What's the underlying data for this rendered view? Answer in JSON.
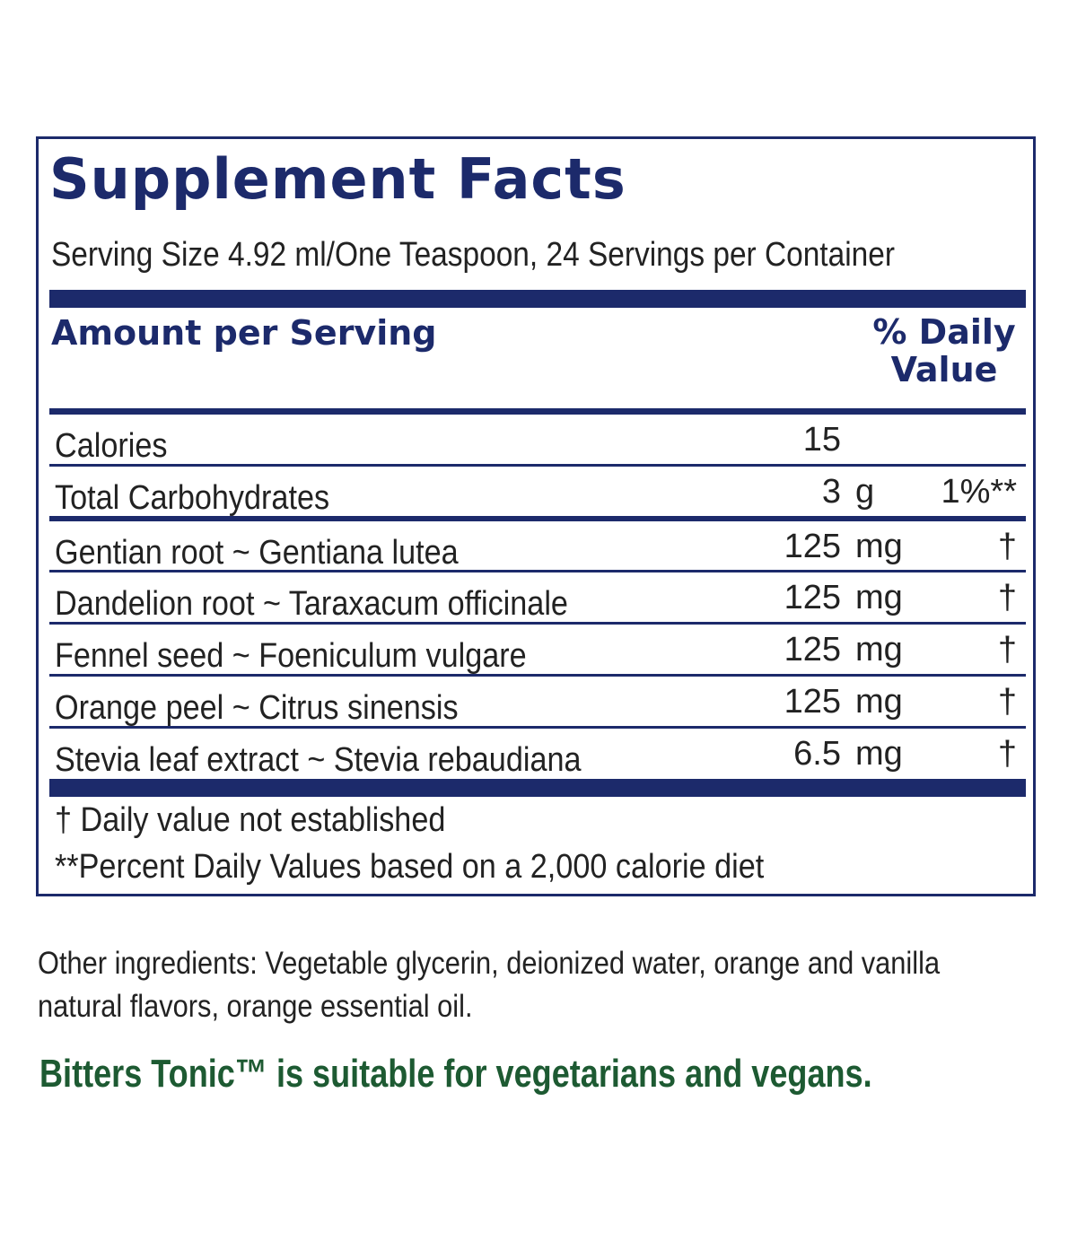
{
  "title": "Supplement Facts",
  "serving": "Serving Size 4.92 ml/One Teaspoon, 24 Servings per Container",
  "header": {
    "amount_per_serving": "Amount per Serving",
    "daily_value_line1": "% Daily",
    "daily_value_line2": "Value"
  },
  "rows": [
    {
      "name": "Calories",
      "amount": "15",
      "unit": "",
      "dv": ""
    },
    {
      "name": "Total Carbohydrates",
      "amount": "3",
      "unit": "g",
      "dv": "1%**"
    },
    {
      "name": "Gentian root ~ Gentiana lutea",
      "amount": "125",
      "unit": "mg",
      "dv": "†"
    },
    {
      "name": "Dandelion root ~ Taraxacum officinale",
      "amount": "125",
      "unit": "mg",
      "dv": "†"
    },
    {
      "name": "Fennel seed ~ Foeniculum vulgare",
      "amount": "125",
      "unit": "mg",
      "dv": "†"
    },
    {
      "name": "Orange peel ~ Citrus sinensis",
      "amount": "125",
      "unit": "mg",
      "dv": "†"
    },
    {
      "name": "Stevia leaf extract ~ Stevia rebaudiana",
      "amount": "6.5",
      "unit": "mg",
      "dv": "†"
    }
  ],
  "footnotes": {
    "dagger": "†  Daily value not established",
    "percent": "**Percent Daily Values based on a 2,000 calorie diet"
  },
  "other_ingredients": "Other ingredients: Vegetable glycerin, deionized water, orange and vanilla natural flavors, orange essential oil.",
  "vegan_note": "Bitters Tonic™ is suitable for vegetarians and vegans.",
  "colors": {
    "label_blue": "#1c2a6b",
    "vegan_green": "#1d5a32"
  }
}
